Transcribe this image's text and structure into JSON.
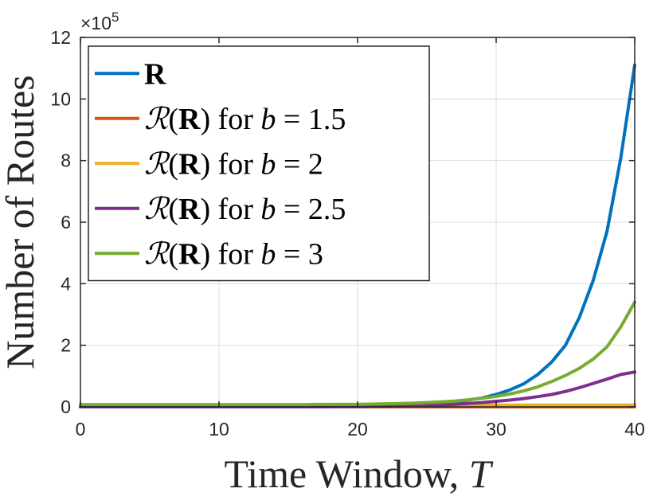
{
  "chart_data": {
    "type": "line",
    "xlabel_text": "Time Window, ",
    "xlabel_var": "T",
    "ylabel": "Number of Routes",
    "y_exponent_prefix": "×10",
    "y_exponent_power": "5",
    "xlim": [
      0,
      40
    ],
    "ylim": [
      0,
      12
    ],
    "xticks": [
      0,
      10,
      20,
      30,
      40
    ],
    "yticks": [
      0,
      2,
      4,
      6,
      8,
      10,
      12
    ],
    "grid": true,
    "legend_position": "top-left",
    "x": [
      0,
      1,
      2,
      3,
      4,
      5,
      6,
      7,
      8,
      9,
      10,
      11,
      12,
      13,
      14,
      15,
      16,
      17,
      18,
      19,
      20,
      21,
      22,
      23,
      24,
      25,
      26,
      27,
      28,
      29,
      30,
      31,
      32,
      33,
      34,
      35,
      36,
      37,
      38,
      39,
      40
    ],
    "series": [
      {
        "label_main": "R",
        "label_for": "",
        "label_b": "",
        "color": "#0072BD",
        "values": [
          0,
          0,
          0,
          0,
          0,
          0,
          0,
          0,
          0,
          0,
          0.01,
          0.01,
          0.01,
          0.01,
          0.01,
          0.01,
          0.02,
          0.02,
          0.02,
          0.03,
          0.03,
          0.04,
          0.05,
          0.06,
          0.08,
          0.1,
          0.13,
          0.17,
          0.22,
          0.29,
          0.4,
          0.55,
          0.75,
          1.05,
          1.45,
          2.0,
          2.9,
          4.1,
          5.7,
          8.1,
          11.1
        ]
      },
      {
        "label_main": "R",
        "label_for": "for",
        "label_b": "b = 1.5",
        "color": "#D95319",
        "values": [
          0,
          0,
          0,
          0,
          0,
          0,
          0,
          0,
          0,
          0,
          0,
          0,
          0,
          0,
          0,
          0,
          0,
          0,
          0,
          0,
          0,
          0,
          0,
          0,
          0,
          0,
          0,
          0,
          0,
          0,
          0,
          0,
          0,
          0,
          0,
          0,
          0,
          0,
          0,
          0,
          0
        ]
      },
      {
        "label_main": "R",
        "label_for": "for",
        "label_b": "b = 2",
        "color": "#EDB120",
        "values": [
          0.06,
          0.06,
          0.06,
          0.06,
          0.06,
          0.06,
          0.06,
          0.06,
          0.06,
          0.06,
          0.06,
          0.06,
          0.06,
          0.06,
          0.06,
          0.06,
          0.06,
          0.06,
          0.06,
          0.06,
          0.06,
          0.06,
          0.06,
          0.06,
          0.06,
          0.06,
          0.06,
          0.06,
          0.06,
          0.06,
          0.06,
          0.06,
          0.06,
          0.06,
          0.06,
          0.06,
          0.06,
          0.06,
          0.06,
          0.06,
          0.06
        ]
      },
      {
        "label_main": "R",
        "label_for": "for",
        "label_b": "b = 2.5",
        "color": "#7E2F8E",
        "values": [
          0,
          0,
          0,
          0,
          0,
          0,
          0,
          0,
          0,
          0,
          0,
          0,
          0,
          0,
          0,
          0,
          0,
          0,
          0,
          0.01,
          0.01,
          0.02,
          0.02,
          0.03,
          0.04,
          0.05,
          0.06,
          0.08,
          0.11,
          0.14,
          0.18,
          0.22,
          0.27,
          0.33,
          0.4,
          0.5,
          0.62,
          0.76,
          0.9,
          1.05,
          1.13
        ]
      },
      {
        "label_main": "R",
        "label_for": "for",
        "label_b": "b = 3",
        "color": "#77AC30",
        "values": [
          0.07,
          0.07,
          0.07,
          0.07,
          0.07,
          0.07,
          0.07,
          0.07,
          0.07,
          0.07,
          0.07,
          0.07,
          0.07,
          0.07,
          0.07,
          0.07,
          0.07,
          0.08,
          0.08,
          0.08,
          0.08,
          0.09,
          0.1,
          0.11,
          0.12,
          0.14,
          0.16,
          0.19,
          0.23,
          0.28,
          0.34,
          0.42,
          0.52,
          0.65,
          0.82,
          1.02,
          1.25,
          1.55,
          1.95,
          2.6,
          3.4
        ]
      }
    ]
  }
}
